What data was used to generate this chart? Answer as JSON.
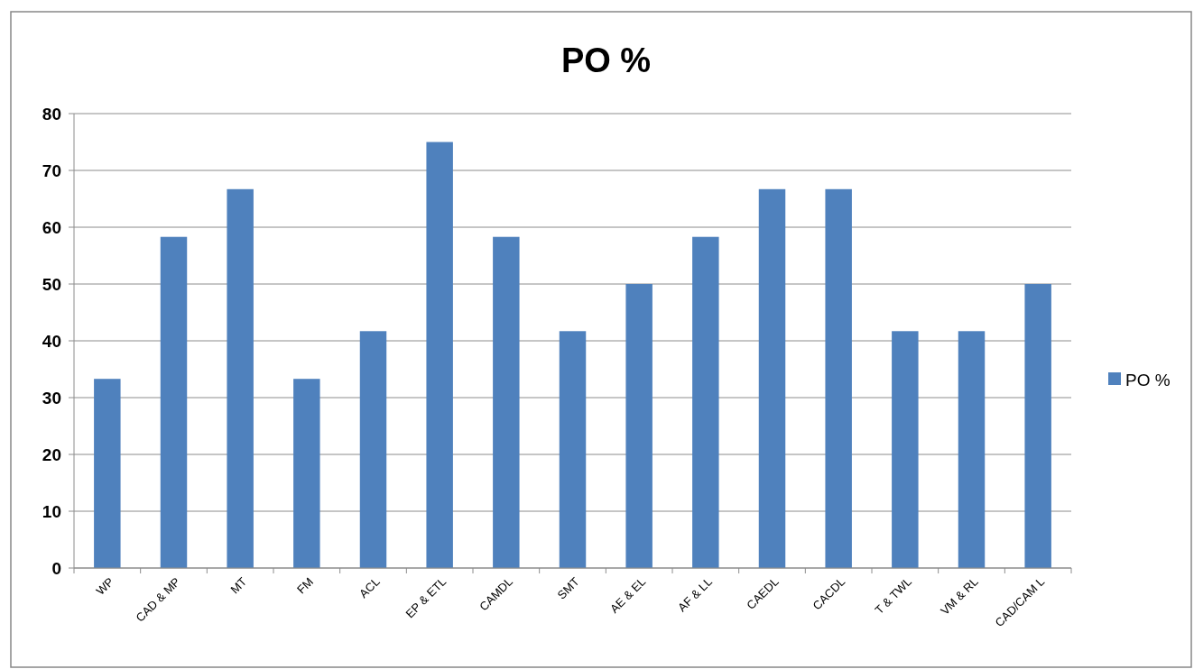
{
  "chart_data": {
    "type": "bar",
    "title": "PO %",
    "categories": [
      "WP",
      "CAD & MP",
      "MT",
      "FM",
      "ACL",
      "EP & ETL",
      "CAMDL",
      "SMT",
      "AE & EL",
      "AF & LL",
      "CAEDL",
      "CACDL",
      "T & TWL",
      "VM & RL",
      "CAD/CAM L"
    ],
    "series": [
      {
        "name": "PO %",
        "color": "#4f81bd",
        "values": [
          33.3,
          58.3,
          66.7,
          33.3,
          41.7,
          75,
          58.3,
          41.7,
          50,
          58.3,
          66.7,
          66.7,
          41.7,
          41.7,
          50
        ]
      }
    ],
    "ylim": [
      0,
      80
    ],
    "yticks": [
      0,
      10,
      20,
      30,
      40,
      50,
      60,
      70,
      80
    ],
    "grid": "y",
    "legend": "right"
  }
}
